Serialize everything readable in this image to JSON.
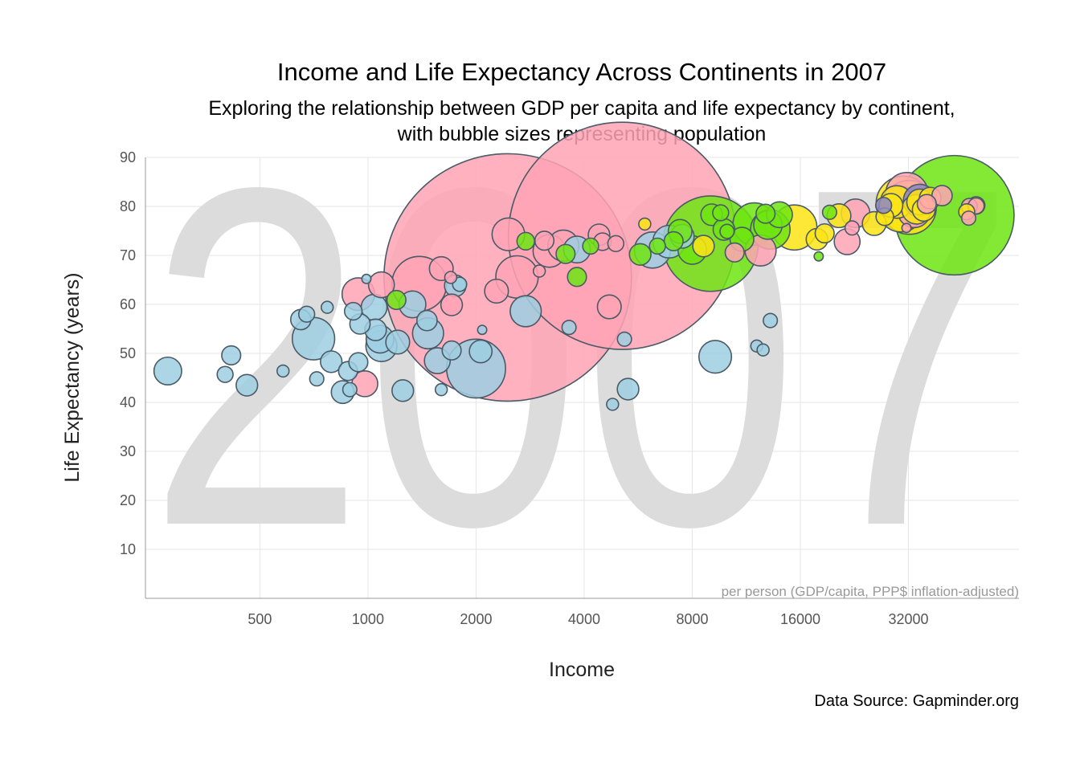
{
  "chart_data": {
    "type": "scatter",
    "title": "Income and Life Expectancy Across Continents in 2007",
    "subtitle_lines": [
      "Exploring the relationship between GDP per capita and life expectancy by continent,",
      "with bubble sizes representing population"
    ],
    "xlabel": "Income",
    "ylabel": "Life Expectancy (years)",
    "x_unit_note": "per person (GDP/capita, PPP$ inflation-adjusted)",
    "caption": "Data Source: Gapminder.org",
    "year_watermark": "2007",
    "x_scale": "log2",
    "xlim": [
      240,
      65000
    ],
    "ylim": [
      0,
      90
    ],
    "x_ticks": [
      500,
      1000,
      2000,
      4000,
      8000,
      16000,
      32000
    ],
    "x_tick_labels": [
      "500",
      "1000",
      "2000",
      "4000",
      "8000",
      "16000",
      "32000"
    ],
    "y_ticks": [
      10,
      20,
      30,
      40,
      50,
      60,
      70,
      80,
      90
    ],
    "y_tick_labels": [
      "10",
      "20",
      "30",
      "40",
      "50",
      "60",
      "70",
      "80",
      "90"
    ],
    "grid": true,
    "legend": "none",
    "series": [
      {
        "color": "#9ecfe2",
        "points": [
          {
            "x": 277,
            "y": 46.4,
            "size": 14
          },
          {
            "x": 416,
            "y": 49.6,
            "size": 6
          },
          {
            "x": 400,
            "y": 45.7,
            "size": 4
          },
          {
            "x": 460,
            "y": 43.5,
            "size": 8
          },
          {
            "x": 580,
            "y": 46.4,
            "size": 2
          },
          {
            "x": 650,
            "y": 56.9,
            "size": 7
          },
          {
            "x": 675,
            "y": 58.0,
            "size": 4
          },
          {
            "x": 705,
            "y": 53.0,
            "size": 35
          },
          {
            "x": 720,
            "y": 44.8,
            "size": 3
          },
          {
            "x": 770,
            "y": 59.4,
            "size": 2
          },
          {
            "x": 790,
            "y": 48.3,
            "size": 8
          },
          {
            "x": 850,
            "y": 42.1,
            "size": 9
          },
          {
            "x": 880,
            "y": 46.4,
            "size": 6
          },
          {
            "x": 890,
            "y": 42.6,
            "size": 3
          },
          {
            "x": 910,
            "y": 58.6,
            "size": 5
          },
          {
            "x": 940,
            "y": 48.2,
            "size": 6
          },
          {
            "x": 950,
            "y": 56.0,
            "size": 7
          },
          {
            "x": 990,
            "y": 65.2,
            "size": 1
          },
          {
            "x": 1040,
            "y": 59.4,
            "size": 12
          },
          {
            "x": 1050,
            "y": 54.8,
            "size": 8
          },
          {
            "x": 1080,
            "y": 52.9,
            "size": 14
          },
          {
            "x": 1090,
            "y": 51.5,
            "size": 18
          },
          {
            "x": 1210,
            "y": 52.3,
            "size": 10
          },
          {
            "x": 1250,
            "y": 42.4,
            "size": 8
          },
          {
            "x": 1330,
            "y": 60.0,
            "size": 13
          },
          {
            "x": 1460,
            "y": 56.7,
            "size": 7
          },
          {
            "x": 1470,
            "y": 54.1,
            "size": 18
          },
          {
            "x": 1560,
            "y": 48.5,
            "size": 12
          },
          {
            "x": 1600,
            "y": 42.6,
            "size": 2
          },
          {
            "x": 1710,
            "y": 50.6,
            "size": 6
          },
          {
            "x": 1750,
            "y": 63.8,
            "size": 8
          },
          {
            "x": 1800,
            "y": 64.1,
            "size": 3
          },
          {
            "x": 2000,
            "y": 46.9,
            "size": 70
          },
          {
            "x": 2060,
            "y": 50.4,
            "size": 9
          },
          {
            "x": 2080,
            "y": 54.8,
            "size": 1
          },
          {
            "x": 2750,
            "y": 58.6,
            "size": 18
          },
          {
            "x": 3630,
            "y": 55.3,
            "size": 3
          },
          {
            "x": 3820,
            "y": 71.2,
            "size": 13
          },
          {
            "x": 4800,
            "y": 39.6,
            "size": 2
          },
          {
            "x": 5180,
            "y": 52.9,
            "size": 3
          },
          {
            "x": 5300,
            "y": 42.7,
            "size": 8
          },
          {
            "x": 6200,
            "y": 71.1,
            "size": 25
          },
          {
            "x": 6900,
            "y": 72.8,
            "size": 20
          },
          {
            "x": 7500,
            "y": 73.9,
            "size": 10
          },
          {
            "x": 9270,
            "y": 49.3,
            "size": 20
          },
          {
            "x": 12100,
            "y": 51.5,
            "size": 2
          },
          {
            "x": 12600,
            "y": 50.7,
            "size": 2
          },
          {
            "x": 13200,
            "y": 56.7,
            "size": 3
          }
        ]
      },
      {
        "color": "#ffa3b5",
        "points": [
          {
            "x": 940,
            "y": 62.1,
            "size": 20
          },
          {
            "x": 980,
            "y": 43.8,
            "size": 12
          },
          {
            "x": 1090,
            "y": 64.0,
            "size": 12
          },
          {
            "x": 1390,
            "y": 64.2,
            "size": 60
          },
          {
            "x": 1600,
            "y": 67.3,
            "size": 10
          },
          {
            "x": 1700,
            "y": 65.5,
            "size": 2
          },
          {
            "x": 1710,
            "y": 59.9,
            "size": 8
          },
          {
            "x": 2280,
            "y": 62.7,
            "size": 10
          },
          {
            "x": 2450,
            "y": 65.5,
            "size": 1318
          },
          {
            "x": 2460,
            "y": 74.3,
            "size": 20
          },
          {
            "x": 2600,
            "y": 65.6,
            "size": 35
          },
          {
            "x": 3000,
            "y": 66.8,
            "size": 2
          },
          {
            "x": 3100,
            "y": 73.0,
            "size": 6
          },
          {
            "x": 3200,
            "y": 70.9,
            "size": 20
          },
          {
            "x": 3500,
            "y": 72.0,
            "size": 18
          },
          {
            "x": 4400,
            "y": 74.2,
            "size": 8
          },
          {
            "x": 4500,
            "y": 72.8,
            "size": 5
          },
          {
            "x": 4700,
            "y": 59.5,
            "size": 10
          },
          {
            "x": 4900,
            "y": 72.4,
            "size": 4
          },
          {
            "x": 5100,
            "y": 74.0,
            "size": 1110
          },
          {
            "x": 10500,
            "y": 70.6,
            "size": 6
          },
          {
            "x": 12400,
            "y": 71.0,
            "size": 18
          },
          {
            "x": 21600,
            "y": 72.8,
            "size": 12
          },
          {
            "x": 22300,
            "y": 75.6,
            "size": 3
          },
          {
            "x": 22800,
            "y": 78.6,
            "size": 15
          },
          {
            "x": 31600,
            "y": 75.6,
            "size": 1
          },
          {
            "x": 31700,
            "y": 82.6,
            "size": 35
          },
          {
            "x": 33200,
            "y": 79.0,
            "size": 20
          },
          {
            "x": 36000,
            "y": 80.5,
            "size": 6
          },
          {
            "x": 39700,
            "y": 82.2,
            "size": 7
          },
          {
            "x": 47300,
            "y": 80.0,
            "size": 4
          },
          {
            "x": 47100,
            "y": 77.6,
            "size": 3
          },
          {
            "x": 49400,
            "y": 80.1,
            "size": 4
          }
        ]
      },
      {
        "color": "#6ee512",
        "points": [
          {
            "x": 1200,
            "y": 60.9,
            "size": 6
          },
          {
            "x": 2750,
            "y": 72.9,
            "size": 5
          },
          {
            "x": 3550,
            "y": 70.3,
            "size": 6
          },
          {
            "x": 3820,
            "y": 65.6,
            "size": 6
          },
          {
            "x": 4170,
            "y": 71.9,
            "size": 4
          },
          {
            "x": 5730,
            "y": 70.2,
            "size": 8
          },
          {
            "x": 6400,
            "y": 71.9,
            "size": 4
          },
          {
            "x": 7100,
            "y": 72.9,
            "size": 6
          },
          {
            "x": 7400,
            "y": 74.9,
            "size": 10
          },
          {
            "x": 8000,
            "y": 71.1,
            "size": 15
          },
          {
            "x": 9000,
            "y": 72.4,
            "size": 190
          },
          {
            "x": 9060,
            "y": 78.3,
            "size": 8
          },
          {
            "x": 9600,
            "y": 78.7,
            "size": 4
          },
          {
            "x": 9800,
            "y": 75.3,
            "size": 8
          },
          {
            "x": 10000,
            "y": 74.9,
            "size": 3
          },
          {
            "x": 11000,
            "y": 73.3,
            "size": 10
          },
          {
            "x": 11900,
            "y": 76.4,
            "size": 35
          },
          {
            "x": 12800,
            "y": 78.5,
            "size": 6
          },
          {
            "x": 13000,
            "y": 76.2,
            "size": 15
          },
          {
            "x": 13200,
            "y": 75.3,
            "size": 30
          },
          {
            "x": 14000,
            "y": 78.3,
            "size": 12
          },
          {
            "x": 18000,
            "y": 69.8,
            "size": 1
          },
          {
            "x": 19300,
            "y": 78.8,
            "size": 3
          },
          {
            "x": 42950,
            "y": 78.2,
            "size": 301
          }
        ]
      },
      {
        "color": "#fde415",
        "points": [
          {
            "x": 5900,
            "y": 76.4,
            "size": 2
          },
          {
            "x": 8600,
            "y": 71.9,
            "size": 8
          },
          {
            "x": 15400,
            "y": 75.7,
            "size": 40
          },
          {
            "x": 17800,
            "y": 73.3,
            "size": 8
          },
          {
            "x": 18700,
            "y": 74.5,
            "size": 6
          },
          {
            "x": 20500,
            "y": 78.1,
            "size": 10
          },
          {
            "x": 25700,
            "y": 76.5,
            "size": 10
          },
          {
            "x": 27500,
            "y": 77.9,
            "size": 5
          },
          {
            "x": 28600,
            "y": 80.2,
            "size": 10
          },
          {
            "x": 29700,
            "y": 80.9,
            "size": 20
          },
          {
            "x": 30500,
            "y": 79.4,
            "size": 40
          },
          {
            "x": 31000,
            "y": 80.6,
            "size": 60
          },
          {
            "x": 32200,
            "y": 79.8,
            "size": 58
          },
          {
            "x": 33700,
            "y": 79.4,
            "size": 16
          },
          {
            "x": 34400,
            "y": 80.9,
            "size": 12
          },
          {
            "x": 35300,
            "y": 79.3,
            "size": 9
          },
          {
            "x": 36800,
            "y": 81.7,
            "size": 8
          },
          {
            "x": 46500,
            "y": 78.9,
            "size": 4
          },
          {
            "x": 49400,
            "y": 80.2,
            "size": 5
          }
        ]
      },
      {
        "color": "#8d86c6",
        "points": [
          {
            "x": 27300,
            "y": 80.2,
            "size": 4
          },
          {
            "x": 34400,
            "y": 81.2,
            "size": 20
          }
        ]
      }
    ]
  }
}
